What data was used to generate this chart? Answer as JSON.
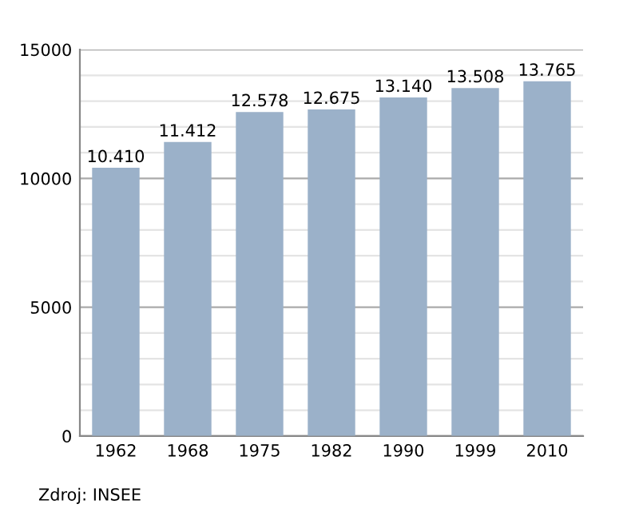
{
  "chart_data": {
    "type": "bar",
    "categories": [
      "1962",
      "1968",
      "1975",
      "1982",
      "1990",
      "1999",
      "2010"
    ],
    "values": [
      10410,
      11412,
      12578,
      12675,
      13140,
      13508,
      13765
    ],
    "value_labels": [
      "10.410",
      "11.412",
      "12.578",
      "12.675",
      "13.140",
      "13.508",
      "13.765"
    ],
    "color": "#9bb1c9",
    "ylim": [
      0,
      15000
    ],
    "yticks": [
      0,
      {
        "value": 1000,
        "label": null
      },
      {
        "value": 2000,
        "label": null
      },
      {
        "value": 3000,
        "label": null
      },
      {
        "value": 4000,
        "label": null
      },
      5000,
      {
        "value": 6000,
        "label": null
      },
      {
        "value": 7000,
        "label": null
      },
      {
        "value": 8000,
        "label": null
      },
      {
        "value": 9000,
        "label": null
      },
      10000,
      {
        "value": 11000,
        "label": null
      },
      {
        "value": 12000,
        "label": null
      },
      {
        "value": 13000,
        "label": null
      },
      {
        "value": 14000,
        "label": null
      },
      15000
    ],
    "grid": "y",
    "annotations": [
      "Zdroj: INSEE"
    ]
  }
}
